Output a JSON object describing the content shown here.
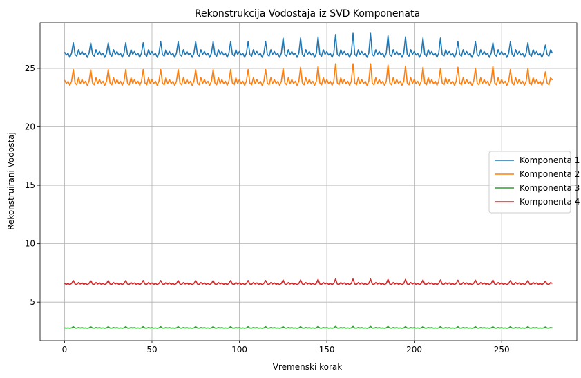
{
  "chart_data": {
    "type": "line",
    "title": "Rekonstrukcija Vodostaja iz SVD Komponenata",
    "xlabel": "Vremenski korak",
    "ylabel": "Rekonstruirani Vodostaj",
    "xlim": [
      -14,
      293
    ],
    "ylim": [
      1.7,
      28.9
    ],
    "xticks": [
      0,
      50,
      100,
      150,
      200,
      250
    ],
    "yticks": [
      5,
      10,
      15,
      20,
      25
    ],
    "grid": true,
    "legend_position": "center-right",
    "n_points": 280,
    "period": 10,
    "series": [
      {
        "name": "Komponenta 1",
        "color": "#1f77b4",
        "base": 26.3,
        "cycle": [
          0.15,
          -0.15,
          0.0,
          -0.35,
          0.0,
          0.4,
          -0.1,
          -0.25,
          0.3,
          -0.1
        ],
        "peak": [
          0.9,
          0.9,
          0.9,
          0.9,
          0.9,
          1.0,
          1.0,
          1.0,
          1.0,
          1.0,
          1.0,
          1.0,
          1.3,
          1.3,
          1.4,
          1.6,
          1.7,
          1.7,
          1.5,
          1.4,
          1.3,
          1.3,
          1.0,
          1.0,
          0.9,
          1.0,
          0.9,
          0.7
        ],
        "start": 26.4,
        "end": 26.3
      },
      {
        "name": "Komponenta 2",
        "color": "#ff7f0e",
        "base": 23.9,
        "cycle": [
          0.15,
          -0.2,
          0.0,
          -0.35,
          0.0,
          0.4,
          -0.15,
          -0.3,
          0.3,
          -0.2
        ],
        "peak": [
          1.0,
          1.0,
          1.0,
          1.0,
          1.0,
          1.0,
          1.0,
          1.0,
          1.0,
          1.0,
          1.0,
          1.0,
          1.1,
          1.2,
          1.3,
          1.5,
          1.5,
          1.5,
          1.4,
          1.3,
          1.2,
          1.1,
          1.2,
          1.1,
          1.3,
          1.0,
          1.1,
          0.8
        ],
        "start": 24.0,
        "end": 24.0
      },
      {
        "name": "Komponenta 3",
        "color": "#2ca02c",
        "base": 2.8,
        "cycle": [
          0.02,
          -0.02,
          0.0,
          -0.03,
          0.0,
          0.04,
          -0.01,
          -0.02,
          0.03,
          -0.01
        ],
        "peak": [
          0.1,
          0.1,
          0.1,
          0.1,
          0.1,
          0.1,
          0.1,
          0.1,
          0.1,
          0.1,
          0.1,
          0.1,
          0.1,
          0.1,
          0.12,
          0.12,
          0.12,
          0.12,
          0.12,
          0.1,
          0.1,
          0.1,
          0.1,
          0.1,
          0.1,
          0.1,
          0.1,
          0.08
        ],
        "start": 2.8,
        "end": 2.8
      },
      {
        "name": "Komponenta 4",
        "color": "#d62728",
        "base": 6.6,
        "cycle": [
          0.05,
          -0.08,
          0.0,
          -0.1,
          0.0,
          0.1,
          -0.05,
          -0.08,
          0.08,
          -0.05
        ],
        "peak": [
          0.25,
          0.25,
          0.25,
          0.25,
          0.25,
          0.25,
          0.25,
          0.25,
          0.25,
          0.25,
          0.25,
          0.25,
          0.3,
          0.3,
          0.35,
          0.38,
          0.38,
          0.38,
          0.35,
          0.35,
          0.3,
          0.3,
          0.28,
          0.28,
          0.3,
          0.25,
          0.25,
          0.2
        ],
        "start": 6.6,
        "end": 6.6
      }
    ]
  }
}
